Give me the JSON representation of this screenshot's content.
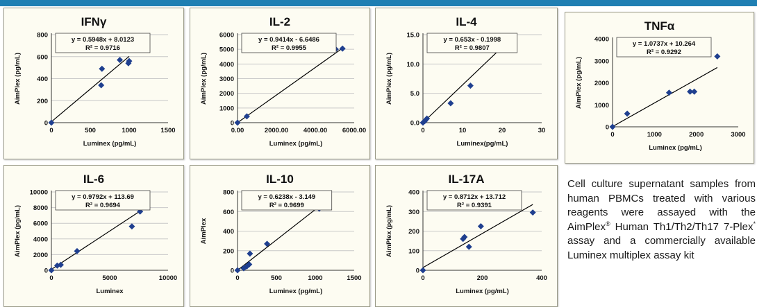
{
  "colors": {
    "accent_bar": "#1f7fb3",
    "point": "#1f3f8f",
    "line": "#000000",
    "panel_bg": "#fdfcf2",
    "grid": "#c8c8c8"
  },
  "caption": {
    "part1": "Cell culture supernatant samples from human PBMCs treated with various reagents were assayed with the AimPlex",
    "sup1": "®",
    "part2": " Human Th1/Th2/Th17 7-Plex",
    "sup2": "*",
    "part3": " assay and a commercially available Luminex multiplex assay kit"
  },
  "chart_data": [
    {
      "type": "scatter",
      "title": "IFNγ",
      "xlabel": "Luminex (pg/mL)",
      "ylabel": "AimPlex (pg/mL)",
      "xlim": [
        0,
        1500
      ],
      "ylim": [
        0,
        800
      ],
      "xticks": [
        0,
        500,
        1000,
        1500
      ],
      "yticks": [
        0,
        200,
        400,
        600,
        800
      ],
      "xtick_labels": [
        "0",
        "500",
        "1000",
        "1500"
      ],
      "ytick_labels": [
        "0",
        "200",
        "400",
        "600",
        "800"
      ],
      "equation": "y = 0.5948x + 8.0123",
      "r2": "R² = 0.9716",
      "fit": {
        "slope": 0.5948,
        "intercept": 8.0123,
        "x": [
          0,
          1000
        ]
      },
      "points": [
        [
          0,
          0
        ],
        [
          640,
          340
        ],
        [
          650,
          490
        ],
        [
          880,
          570
        ],
        [
          990,
          540
        ],
        [
          1000,
          560
        ]
      ],
      "grid": "horizontal"
    },
    {
      "type": "scatter",
      "title": "IL-2",
      "xlabel": "Luminex (pg/mL)",
      "ylabel": "AimPlex (pg/mL)",
      "xlim": [
        0,
        6000
      ],
      "ylim": [
        0,
        6000
      ],
      "xticks": [
        0,
        2000,
        4000,
        6000
      ],
      "yticks": [
        0,
        1000,
        2000,
        3000,
        4000,
        5000,
        6000
      ],
      "xtick_labels": [
        "0.00",
        "2000.00",
        "4000.00",
        "6000.00"
      ],
      "ytick_labels": [
        "0",
        "1000",
        "2000",
        "3000",
        "4000",
        "5000",
        "6000"
      ],
      "equation": "y = 0.9414x - 6.6486",
      "r2": "R² = 0.9955",
      "fit": {
        "slope": 0.9414,
        "intercept": -6.6486,
        "x": [
          0,
          5300
        ]
      },
      "points": [
        [
          0,
          0
        ],
        [
          480,
          430
        ],
        [
          5050,
          5000
        ],
        [
          5400,
          5050
        ]
      ],
      "grid": "horizontal"
    },
    {
      "type": "scatter",
      "title": "IL-4",
      "xlabel": "Luminex(pg/mL)",
      "ylabel": "AimPlex (pg/mL)",
      "xlim": [
        0,
        30
      ],
      "ylim": [
        0,
        15
      ],
      "xticks": [
        0,
        10,
        20,
        30
      ],
      "yticks": [
        0,
        5,
        10,
        15
      ],
      "xtick_labels": [
        "0",
        "10",
        "20",
        "30"
      ],
      "ytick_labels": [
        "0.0",
        "5.0",
        "10.0",
        "15.0"
      ],
      "equation": "y = 0.653x - 0.1998",
      "r2": "R² = 0.9807",
      "fit": {
        "slope": 0.653,
        "intercept": -0.1998,
        "x": [
          0,
          20
        ]
      },
      "points": [
        [
          0,
          0
        ],
        [
          0.5,
          0.3
        ],
        [
          1,
          0.7
        ],
        [
          7,
          3.3
        ],
        [
          12,
          6.3
        ],
        [
          20,
          13.3
        ]
      ],
      "grid": "horizontal"
    },
    {
      "type": "scatter",
      "title": "TNFα",
      "xlabel": "Luminex (pg/mL)",
      "ylabel": "AimPlex (pg/mL)",
      "xlim": [
        0,
        3000
      ],
      "ylim": [
        0,
        4000
      ],
      "xticks": [
        0,
        1000,
        2000,
        3000
      ],
      "yticks": [
        0,
        1000,
        2000,
        3000,
        4000
      ],
      "xtick_labels": [
        "0",
        "1000",
        "2000",
        "3000"
      ],
      "ytick_labels": [
        "0",
        "1000",
        "2000",
        "3000",
        "4000"
      ],
      "equation": "y = 1.0737x + 10.264",
      "r2": "R² = 0.9292",
      "fit": {
        "slope": 1.0737,
        "intercept": 10.264,
        "x": [
          0,
          2500
        ]
      },
      "points": [
        [
          0,
          0
        ],
        [
          350,
          600
        ],
        [
          1350,
          1550
        ],
        [
          1850,
          1600
        ],
        [
          1950,
          1600
        ],
        [
          2500,
          3200
        ]
      ],
      "grid": "none"
    },
    {
      "type": "scatter",
      "title": "IL-6",
      "xlabel": "Luminex",
      "ylabel": "AimPlex (pg/mL)",
      "xlim": [
        0,
        10000
      ],
      "ylim": [
        0,
        10000
      ],
      "xticks": [
        0,
        5000,
        10000
      ],
      "yticks": [
        0,
        2000,
        4000,
        6000,
        8000,
        10000
      ],
      "xtick_labels": [
        "0",
        "5000",
        "10000"
      ],
      "ytick_labels": [
        "0",
        "2000",
        "4000",
        "6000",
        "8000",
        "10000"
      ],
      "equation": "y = 0.9792x + 113.69",
      "r2": "R² = 0.9694",
      "fit": {
        "slope": 0.9792,
        "intercept": 113.69,
        "x": [
          0,
          7600
        ]
      },
      "points": [
        [
          0,
          0
        ],
        [
          500,
          600
        ],
        [
          800,
          700
        ],
        [
          2200,
          2450
        ],
        [
          6900,
          5600
        ],
        [
          7600,
          7500
        ],
        [
          7600,
          8400
        ]
      ],
      "grid": "horizontal"
    },
    {
      "type": "scatter",
      "title": "IL-10",
      "xlabel": "Luminex (pg/mL)",
      "ylabel": "AimPlex",
      "xlim": [
        0,
        1500
      ],
      "ylim": [
        0,
        800
      ],
      "xticks": [
        0,
        500,
        1000,
        1500
      ],
      "yticks": [
        0,
        200,
        400,
        600,
        800
      ],
      "xtick_labels": [
        "0",
        "500",
        "1000",
        "1500"
      ],
      "ytick_labels": [
        "0",
        "200",
        "400",
        "600",
        "800"
      ],
      "equation": "y = 0.6238x - 3.149",
      "r2": "R² = 0.9699",
      "fit": {
        "slope": 0.6238,
        "intercept": -3.149,
        "x": [
          0,
          1050
        ]
      },
      "points": [
        [
          0,
          0
        ],
        [
          80,
          20
        ],
        [
          120,
          40
        ],
        [
          150,
          60
        ],
        [
          160,
          170
        ],
        [
          380,
          270
        ],
        [
          1050,
          630
        ]
      ],
      "grid": "horizontal"
    },
    {
      "type": "scatter",
      "title": "IL-17A",
      "xlabel": "Luminex (pg/mL)",
      "ylabel": "AimPlex (pg/mL)",
      "xlim": [
        0,
        400
      ],
      "ylim": [
        0,
        400
      ],
      "xticks": [
        0,
        200,
        400
      ],
      "yticks": [
        0,
        100,
        200,
        300,
        400
      ],
      "xtick_labels": [
        "0",
        "200",
        "400"
      ],
      "ytick_labels": [
        "0",
        "100",
        "200",
        "300",
        "400"
      ],
      "equation": "y = 0.8712x + 13.712",
      "r2": "R² = 0.9391",
      "fit": {
        "slope": 0.8712,
        "intercept": 13.712,
        "x": [
          0,
          370
        ]
      },
      "points": [
        [
          0,
          0
        ],
        [
          135,
          160
        ],
        [
          140,
          170
        ],
        [
          155,
          120
        ],
        [
          195,
          225
        ],
        [
          370,
          295
        ]
      ],
      "grid": "horizontal"
    }
  ]
}
